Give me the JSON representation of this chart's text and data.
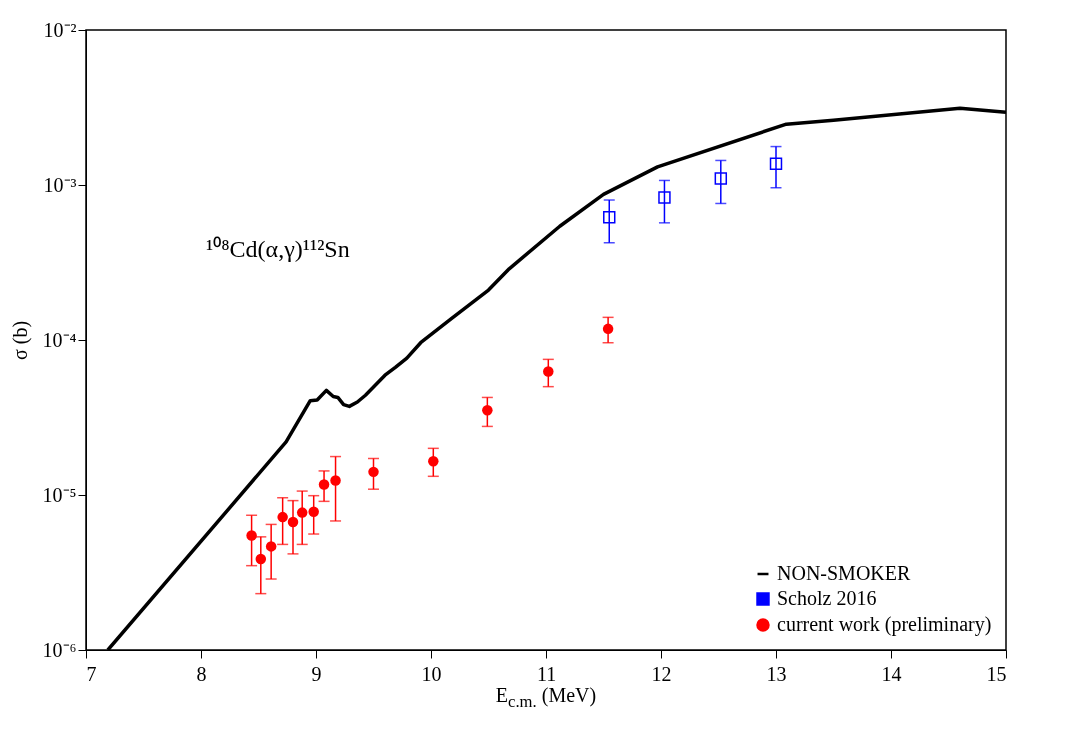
{
  "chart_data": {
    "type": "scatter",
    "xlabel": "E$_{c.m.}$ (MeV)",
    "ylabel": "σ (b)",
    "log": "y",
    "annotations": [
      "¹⁰⁸Cd(α,γ)¹¹²Sn"
    ],
    "xlim": [
      7,
      15
    ],
    "xticks": [
      7,
      8,
      9,
      10,
      11,
      12,
      13,
      14,
      15
    ],
    "ylim": [
      1e-06,
      0.01
    ],
    "yticks": [
      {
        "value": 1e-06,
        "label": "10⁻⁶"
      },
      {
        "value": 1e-05,
        "label": "10⁻⁵"
      },
      {
        "value": 0.0001,
        "label": "10⁻⁴"
      },
      {
        "value": 0.001,
        "label": "10⁻³"
      },
      {
        "value": 0.01,
        "label": "10⁻²"
      }
    ],
    "grid": false,
    "legend": "bottom right",
    "series": [
      {
        "name": "NON-SMOKER",
        "type": "line",
        "color": "#000000",
        "marker": "none",
        "line_style": "solid",
        "x": [
          7.19,
          8.74,
          8.95,
          9.01,
          9.09,
          9.15,
          9.19,
          9.24,
          9.29,
          9.36,
          9.43,
          9.6,
          9.69,
          9.79,
          9.91,
          10.18,
          10.33,
          10.5,
          10.68,
          11.12,
          11.5,
          11.97,
          13.09,
          13.5,
          14.6,
          15
        ],
        "values": [
          1e-06,
          2.2e-05,
          4.06e-05,
          4.1e-05,
          4.73e-05,
          4.32e-05,
          4.26e-05,
          3.83e-05,
          3.73e-05,
          3.98e-05,
          4.4e-05,
          5.93e-05,
          6.66e-05,
          7.64e-05,
          9.6e-05,
          0.000138,
          0.000168,
          0.00021,
          0.000288,
          0.000542,
          0.00087,
          0.00131,
          0.00247,
          0.00262,
          0.00313,
          0.00295
        ]
      },
      {
        "name": "Scholz 2016",
        "type": "scatter",
        "color": "#0000ff",
        "marker": "square",
        "x": [
          11.55,
          12.03,
          12.52,
          13.0
        ],
        "values": [
          0.00062,
          0.00083,
          0.0011,
          0.00137
        ],
        "errors": [
          [
            0.000424,
            0.0008
          ],
          [
            0.00057,
            0.00107
          ],
          [
            0.00076,
            0.00144
          ],
          [
            0.00096,
            0.00177
          ]
        ]
      },
      {
        "name": "current work (preliminary)",
        "type": "scatter",
        "color": "#ff0000",
        "marker": "circle",
        "x": [
          8.44,
          8.52,
          8.61,
          8.71,
          8.8,
          8.88,
          8.98,
          9.07,
          9.17,
          9.5,
          10.02,
          10.49,
          11.02,
          11.54
        ],
        "values": [
          5.48e-06,
          3.86e-06,
          4.66e-06,
          7.2e-06,
          6.7e-06,
          7.7e-06,
          7.8e-06,
          1.17e-05,
          1.24e-05,
          1.41e-05,
          1.65e-05,
          3.52e-05,
          6.26e-05,
          0.000118
        ],
        "errors": [
          [
            3.5e-06,
            7.4e-06
          ],
          [
            2.31e-06,
            5.37e-06
          ],
          [
            2.87e-06,
            6.46e-06
          ],
          [
            4.8e-06,
            9.6e-06
          ],
          [
            4.17e-06,
            9.2e-06
          ],
          [
            4.8e-06,
            1.06e-05
          ],
          [
            5.6e-06,
            9.9e-06
          ],
          [
            9.1e-06,
            1.43e-05
          ],
          [
            6.8e-06,
            1.77e-05
          ],
          [
            1.09e-05,
            1.72e-05
          ],
          [
            1.32e-05,
            2e-05
          ],
          [
            2.77e-05,
            4.26e-05
          ],
          [
            5e-05,
            7.5e-05
          ],
          [
            9.6e-05,
            0.00014
          ]
        ]
      }
    ]
  }
}
